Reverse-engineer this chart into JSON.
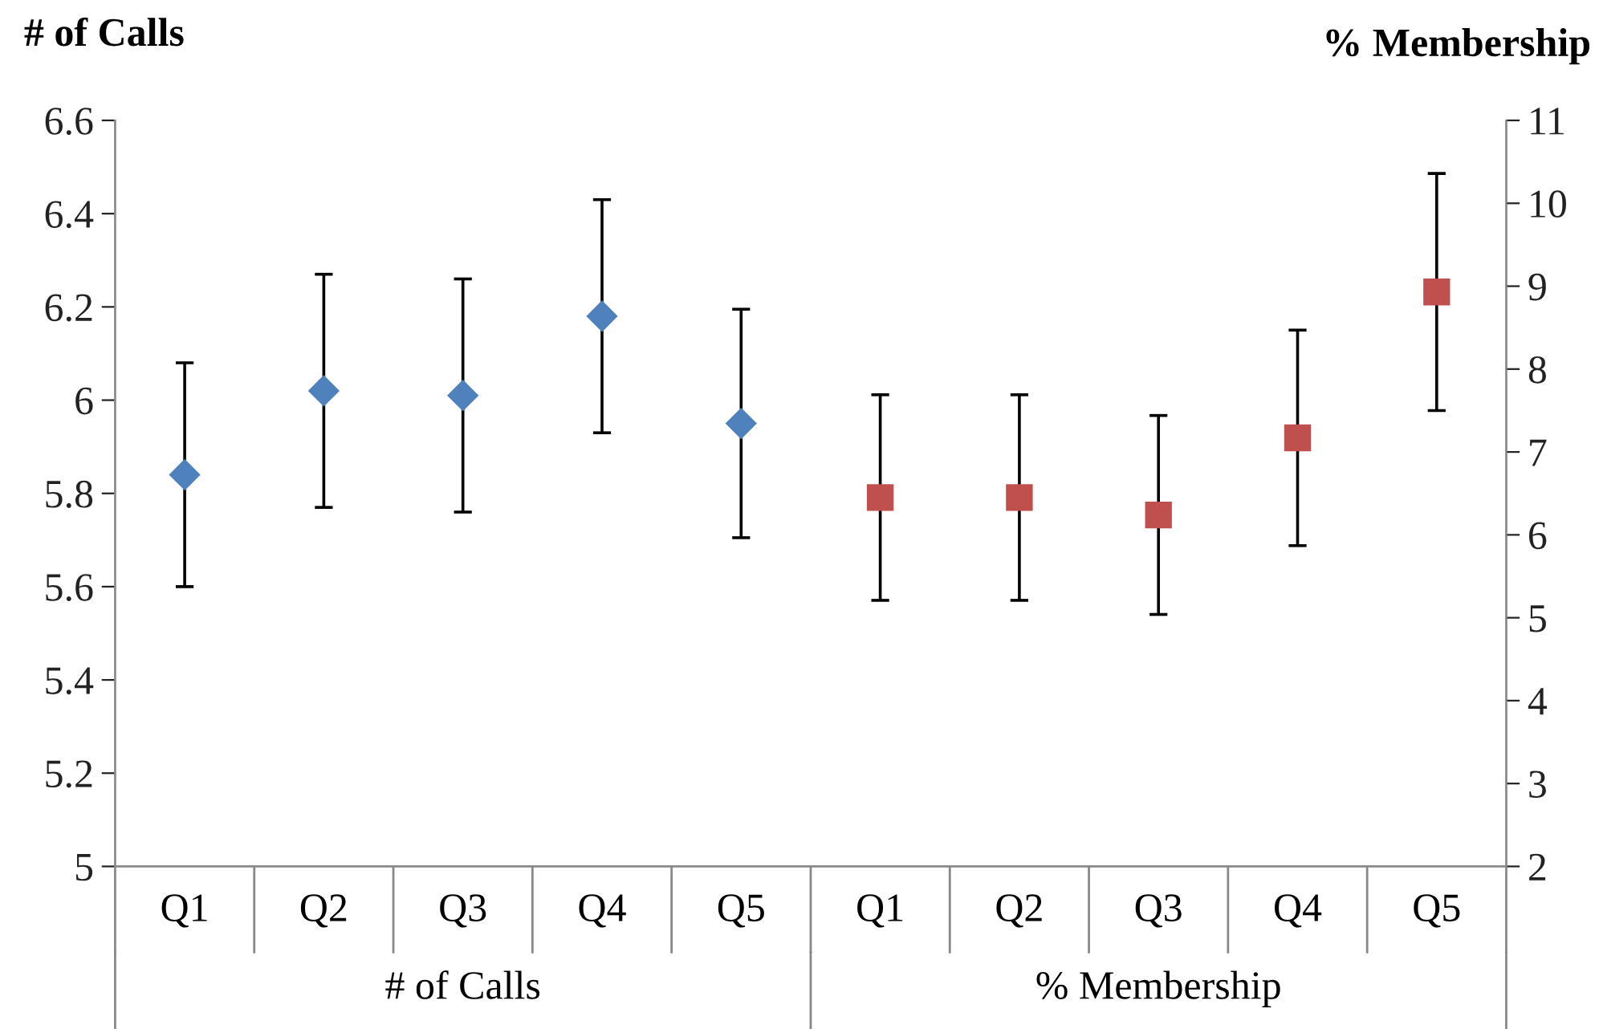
{
  "chart_data": {
    "type": "scatter",
    "ylabel": "# of Calls",
    "y2label": "% Membership",
    "categories": [
      "Q1",
      "Q2",
      "Q3",
      "Q4",
      "Q5",
      "Q1",
      "Q2",
      "Q3",
      "Q4",
      "Q5"
    ],
    "annotations": [
      "# of Calls",
      "% Membership"
    ],
    "series": [
      {
        "color": "#4f81bd",
        "marker": "diamond",
        "values": [
          5.84,
          6.02,
          6.01,
          6.18,
          5.95,
          null,
          null,
          null,
          null,
          null
        ],
        "errors": [
          0.24,
          0.25,
          0.25,
          0.25,
          0.245,
          null,
          null,
          null,
          null,
          null
        ]
      },
      {
        "color": "#c0504d",
        "marker": "square",
        "axis": "y2",
        "values": [
          null,
          null,
          null,
          null,
          null,
          6.45,
          6.45,
          6.24,
          7.17,
          8.93
        ],
        "errors": [
          null,
          null,
          null,
          null,
          null,
          1.24,
          1.24,
          1.2,
          1.3,
          1.43
        ]
      }
    ],
    "ylim": [
      5,
      6.6
    ],
    "yticks": [
      5,
      5.2,
      5.4,
      5.6,
      5.8,
      6,
      6.2,
      6.4,
      6.6
    ],
    "y2lim": [
      2,
      11
    ],
    "y2ticks": [
      2,
      3,
      4,
      5,
      6,
      7,
      8,
      9,
      10,
      11
    ],
    "grid": false,
    "legend": false
  }
}
